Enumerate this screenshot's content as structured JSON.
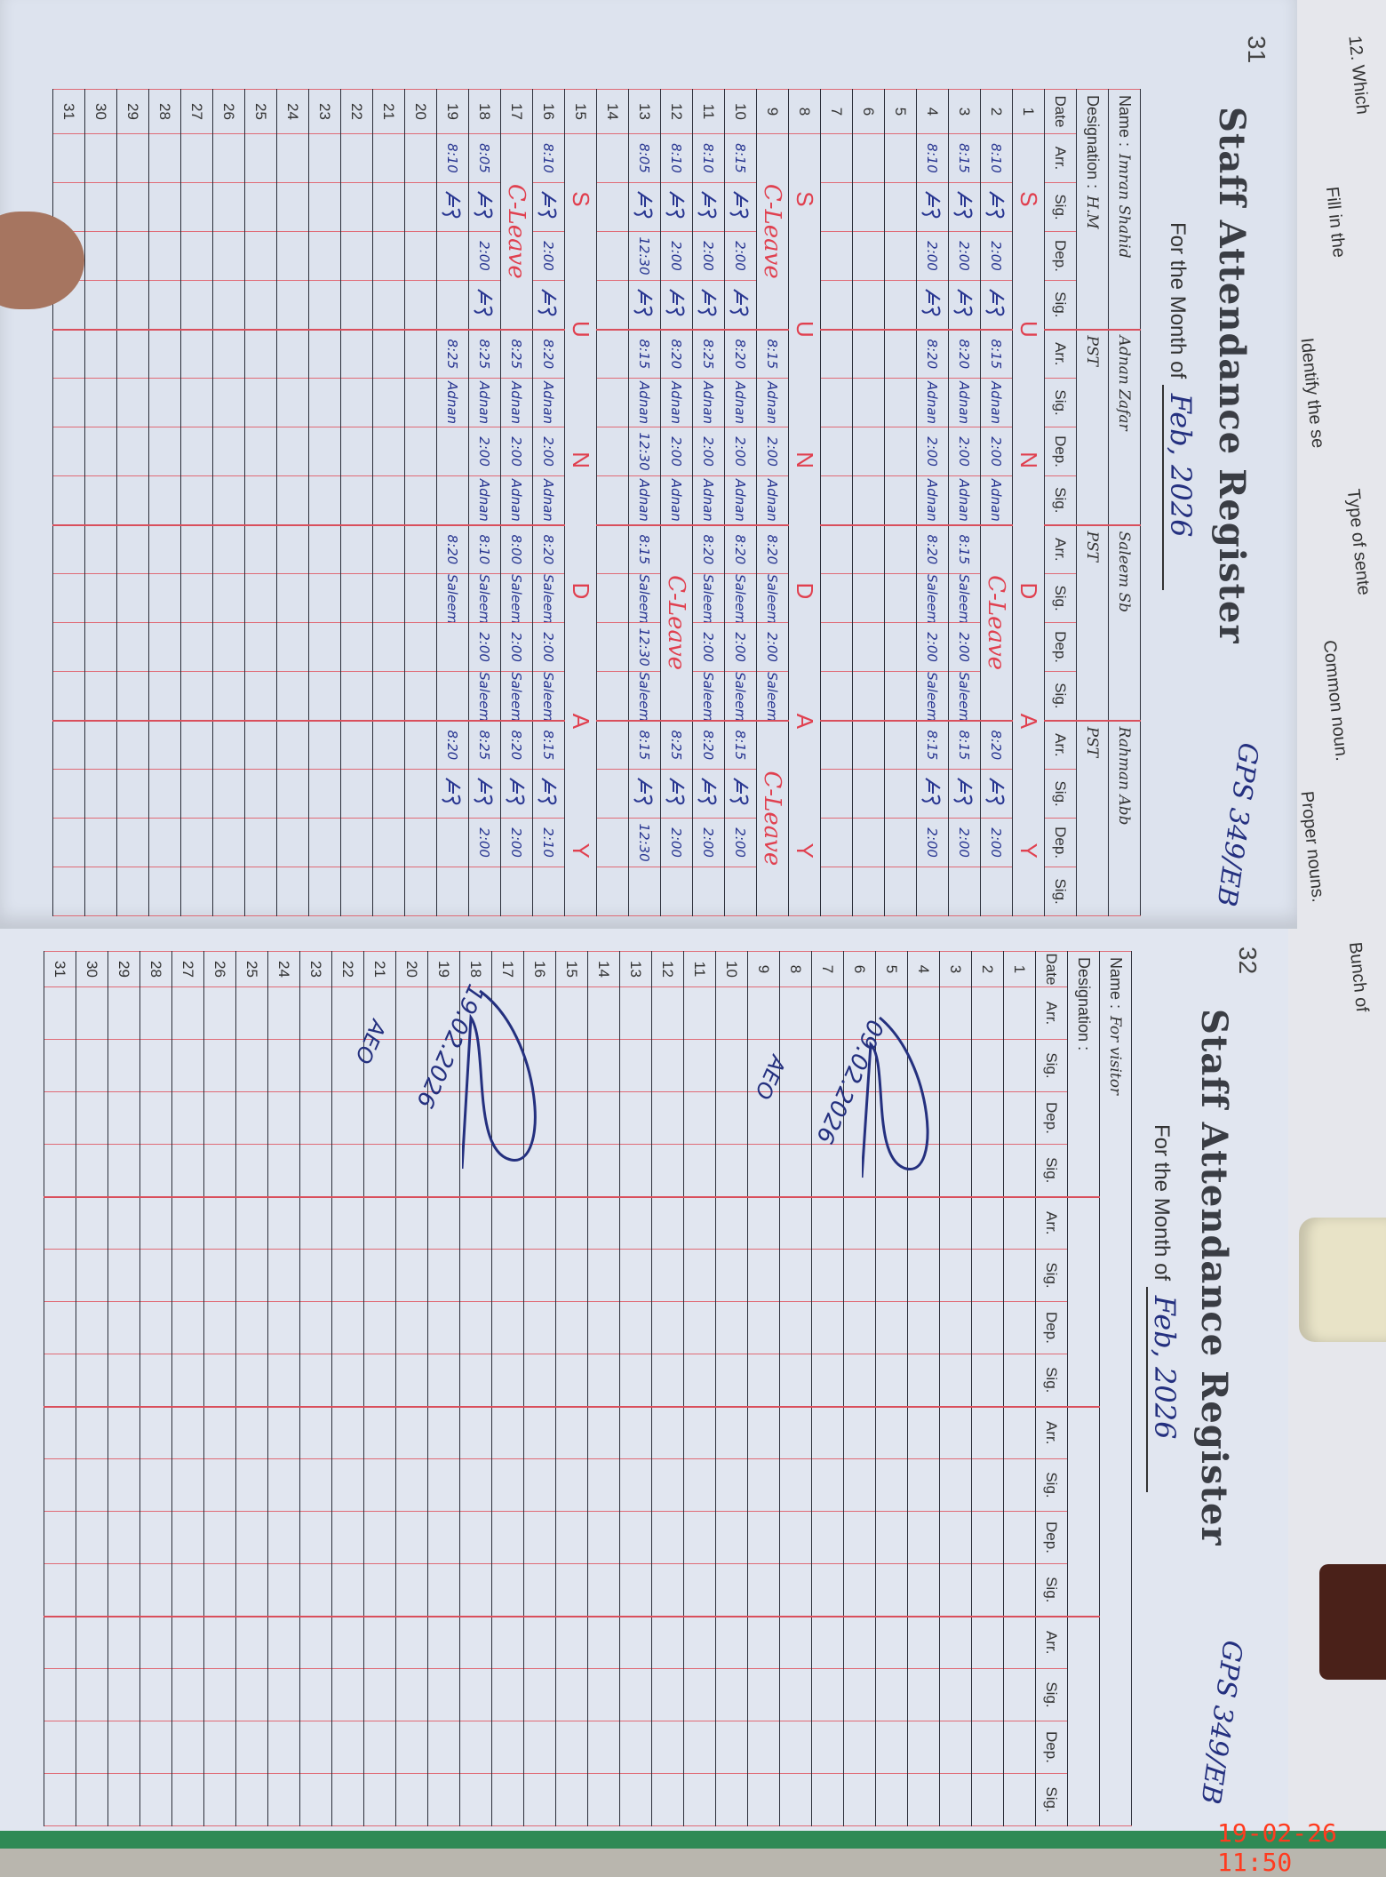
{
  "photo_timestamp": "19-02-26 11:50",
  "background_papers": [
    "12. Which",
    "Fill in the",
    "Identify the se",
    "Type of sente",
    "Common noun.",
    "Proper nouns.",
    "Bunch of"
  ],
  "left_page": {
    "page_number": "31",
    "title": "Staff Attendance Register",
    "month_label": "For the Month of",
    "month_value": "Feb, 2026",
    "school_code": "GPS 349/EB",
    "name_label": "Name :",
    "designation_label": "Designation :",
    "date_label": "Date",
    "subcols": [
      "Arr.",
      "Sig.",
      "Dep.",
      "Sig."
    ],
    "staff": [
      {
        "name": "Imran Shahid",
        "designation": "H.M"
      },
      {
        "name": "Adnan Zafar",
        "designation": "PST"
      },
      {
        "name": "Saleem Sb",
        "designation": "PST"
      },
      {
        "name": "Rahman Abb",
        "designation": "PST"
      }
    ],
    "rows": [
      {
        "date": "1",
        "sunday": [
          "S",
          "U",
          "N",
          "D",
          "A",
          "Y"
        ]
      },
      {
        "date": "2",
        "blocks": [
          [
            "8:10",
            "sig",
            "2:00",
            "sig"
          ],
          [
            "8:15",
            "Adnan",
            "2:00",
            "Adnan"
          ],
          {
            "leave": "C-Leave"
          },
          [
            "8:20",
            "sig",
            "2:00",
            ""
          ]
        ]
      },
      {
        "date": "3",
        "blocks": [
          [
            "8:15",
            "sig",
            "2:00",
            "sig"
          ],
          [
            "8:20",
            "Adnan",
            "2:00",
            "Adnan"
          ],
          [
            "8:15",
            "Saleem",
            "2:00",
            "Saleem"
          ],
          [
            "8:15",
            "sig",
            "2:00",
            ""
          ]
        ]
      },
      {
        "date": "4",
        "blocks": [
          [
            "8:10",
            "sig",
            "2:00",
            "sig"
          ],
          [
            "8:20",
            "Adnan",
            "2:00",
            "Adnan"
          ],
          [
            "8:20",
            "Saleem",
            "2:00",
            "Saleem"
          ],
          [
            "8:15",
            "sig",
            "2:00",
            ""
          ]
        ]
      },
      {
        "date": "5"
      },
      {
        "date": "6"
      },
      {
        "date": "7"
      },
      {
        "date": "8",
        "sunday": [
          "S",
          "U",
          "N",
          "D",
          "A",
          "Y"
        ]
      },
      {
        "date": "9",
        "blocks": [
          {
            "leave": "C-Leave"
          },
          [
            "8:15",
            "Adnan",
            "2:00",
            "Adnan"
          ],
          [
            "8:20",
            "Saleem",
            "2:00",
            "Saleem"
          ],
          {
            "leave": "C-Leave"
          }
        ]
      },
      {
        "date": "10",
        "blocks": [
          [
            "8:15",
            "sig",
            "2:00",
            "sig"
          ],
          [
            "8:20",
            "Adnan",
            "2:00",
            "Adnan"
          ],
          [
            "8:20",
            "Saleem",
            "2:00",
            "Saleem"
          ],
          [
            "8:15",
            "sig",
            "2:00",
            ""
          ]
        ]
      },
      {
        "date": "11",
        "blocks": [
          [
            "8:10",
            "sig",
            "2:00",
            "sig"
          ],
          [
            "8:25",
            "Adnan",
            "2:00",
            "Adnan"
          ],
          [
            "8:20",
            "Saleem",
            "2:00",
            "Saleem"
          ],
          [
            "8:20",
            "sig",
            "2:00",
            ""
          ]
        ]
      },
      {
        "date": "12",
        "blocks": [
          [
            "8:10",
            "sig",
            "2:00",
            "sig"
          ],
          [
            "8:20",
            "Adnan",
            "2:00",
            "Adnan"
          ],
          {
            "leave": "C-Leave"
          },
          [
            "8:25",
            "sig",
            "2:00",
            ""
          ]
        ]
      },
      {
        "date": "13",
        "blocks": [
          [
            "8:05",
            "sig",
            "12:30",
            "sig"
          ],
          [
            "8:15",
            "Adnan",
            "12:30",
            "Adnan"
          ],
          [
            "8:15",
            "Saleem",
            "12:30",
            "Saleem"
          ],
          [
            "8:15",
            "sig",
            "12:30",
            ""
          ]
        ]
      },
      {
        "date": "14"
      },
      {
        "date": "15",
        "sunday": [
          "S",
          "U",
          "N",
          "D",
          "A",
          "Y"
        ]
      },
      {
        "date": "16",
        "blocks": [
          [
            "8:10",
            "sig",
            "2:00",
            "sig"
          ],
          [
            "8:20",
            "Adnan",
            "2:00",
            "Adnan"
          ],
          [
            "8:20",
            "Saleem",
            "2:00",
            "Saleem"
          ],
          [
            "8:15",
            "sig",
            "2:10",
            ""
          ]
        ]
      },
      {
        "date": "17",
        "blocks": [
          {
            "leave": "C-Leave"
          },
          [
            "8:25",
            "Adnan",
            "2:00",
            "Adnan"
          ],
          [
            "8:00",
            "Saleem",
            "2:00",
            "Saleem"
          ],
          [
            "8:20",
            "sig",
            "2:00",
            ""
          ]
        ]
      },
      {
        "date": "18",
        "blocks": [
          [
            "8:05",
            "sig",
            "2:00",
            "sig"
          ],
          [
            "8:25",
            "Adnan",
            "2:00",
            "Adnan"
          ],
          [
            "8:10",
            "Saleem",
            "2:00",
            "Saleem"
          ],
          [
            "8:25",
            "sig",
            "2:00",
            ""
          ]
        ]
      },
      {
        "date": "19",
        "blocks": [
          [
            "8:10",
            "sig",
            "",
            ""
          ],
          [
            "8:25",
            "Adnan",
            "",
            ""
          ],
          [
            "8:20",
            "Saleem",
            "",
            ""
          ],
          [
            "8:20",
            "sig",
            "",
            ""
          ]
        ]
      },
      {
        "date": "20"
      },
      {
        "date": "21"
      },
      {
        "date": "22"
      },
      {
        "date": "23"
      },
      {
        "date": "24"
      },
      {
        "date": "25"
      },
      {
        "date": "26"
      },
      {
        "date": "27"
      },
      {
        "date": "28"
      },
      {
        "date": "29"
      },
      {
        "date": "30"
      },
      {
        "date": "31"
      }
    ]
  },
  "right_page": {
    "page_number": "32",
    "title": "Staff Attendance Register",
    "month_label": "For the Month of",
    "month_value": "Feb, 2026",
    "school_code": "GPS 349/EB",
    "name_label": "Name :",
    "name_value": "For visitor",
    "designation_label": "Designation :",
    "date_label": "Date",
    "subcols": [
      "Arr.",
      "Sig.",
      "Dep.",
      "Sig."
    ],
    "row_count": 31,
    "visitor_entries": [
      {
        "date": "09.02.2026",
        "initials": "AEO"
      },
      {
        "date": "19.02.2026",
        "initials": "AEO"
      }
    ]
  },
  "colors": {
    "ink_blue": "#283691",
    "ink_red": "#e0404f",
    "rule_red": "#e06b76",
    "timestamp": "#ff3b1f"
  }
}
